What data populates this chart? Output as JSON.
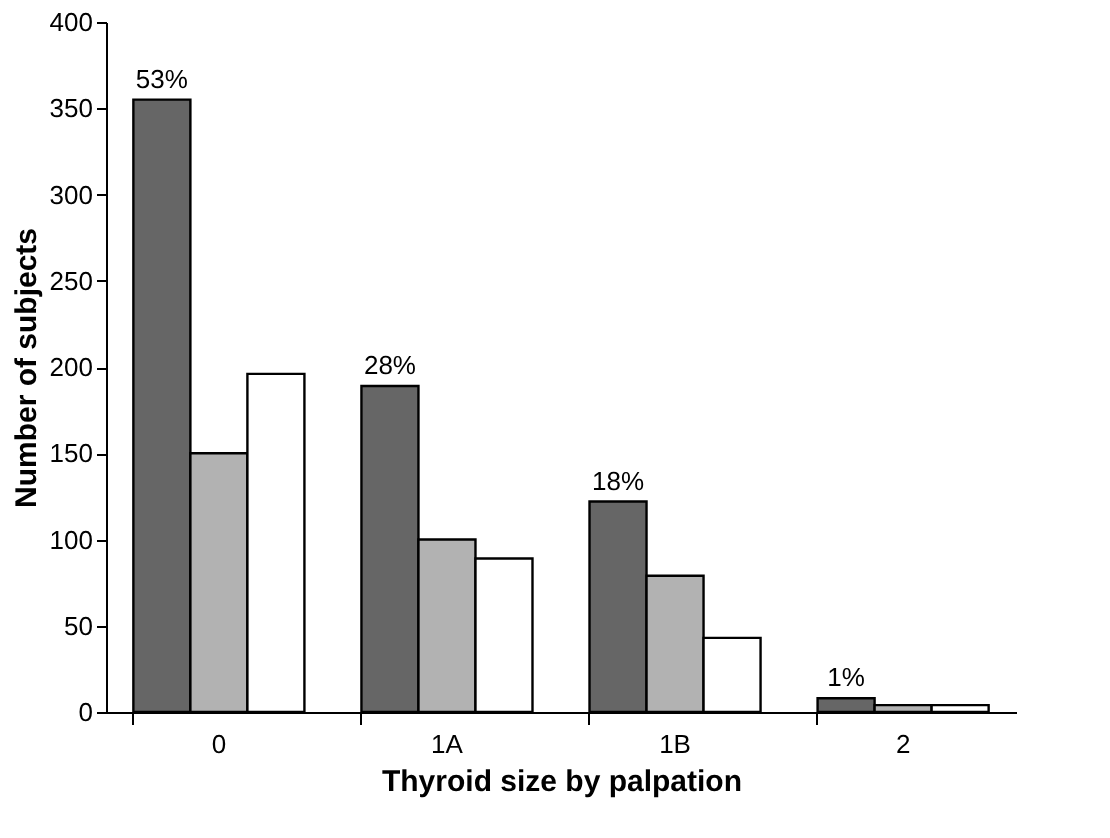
{
  "chart_data": {
    "type": "bar",
    "xlabel": "Thyroid size by palpation",
    "ylabel": "Number of subjects",
    "categories": [
      "0",
      "1A",
      "1B",
      "2"
    ],
    "series": [
      {
        "color": "#666666",
        "values": [
          355,
          189,
          122,
          8
        ]
      },
      {
        "color": "#b2b2b2",
        "values": [
          150,
          100,
          79,
          4
        ]
      },
      {
        "color": "#ffffff",
        "values": [
          196,
          89,
          43,
          4
        ]
      }
    ],
    "annotations": [
      "53%",
      "28%",
      "18%",
      "1%"
    ],
    "ylim": [
      0,
      400
    ],
    "yticks": [
      0,
      50,
      100,
      150,
      200,
      250,
      300,
      350,
      400
    ],
    "grid": false
  }
}
